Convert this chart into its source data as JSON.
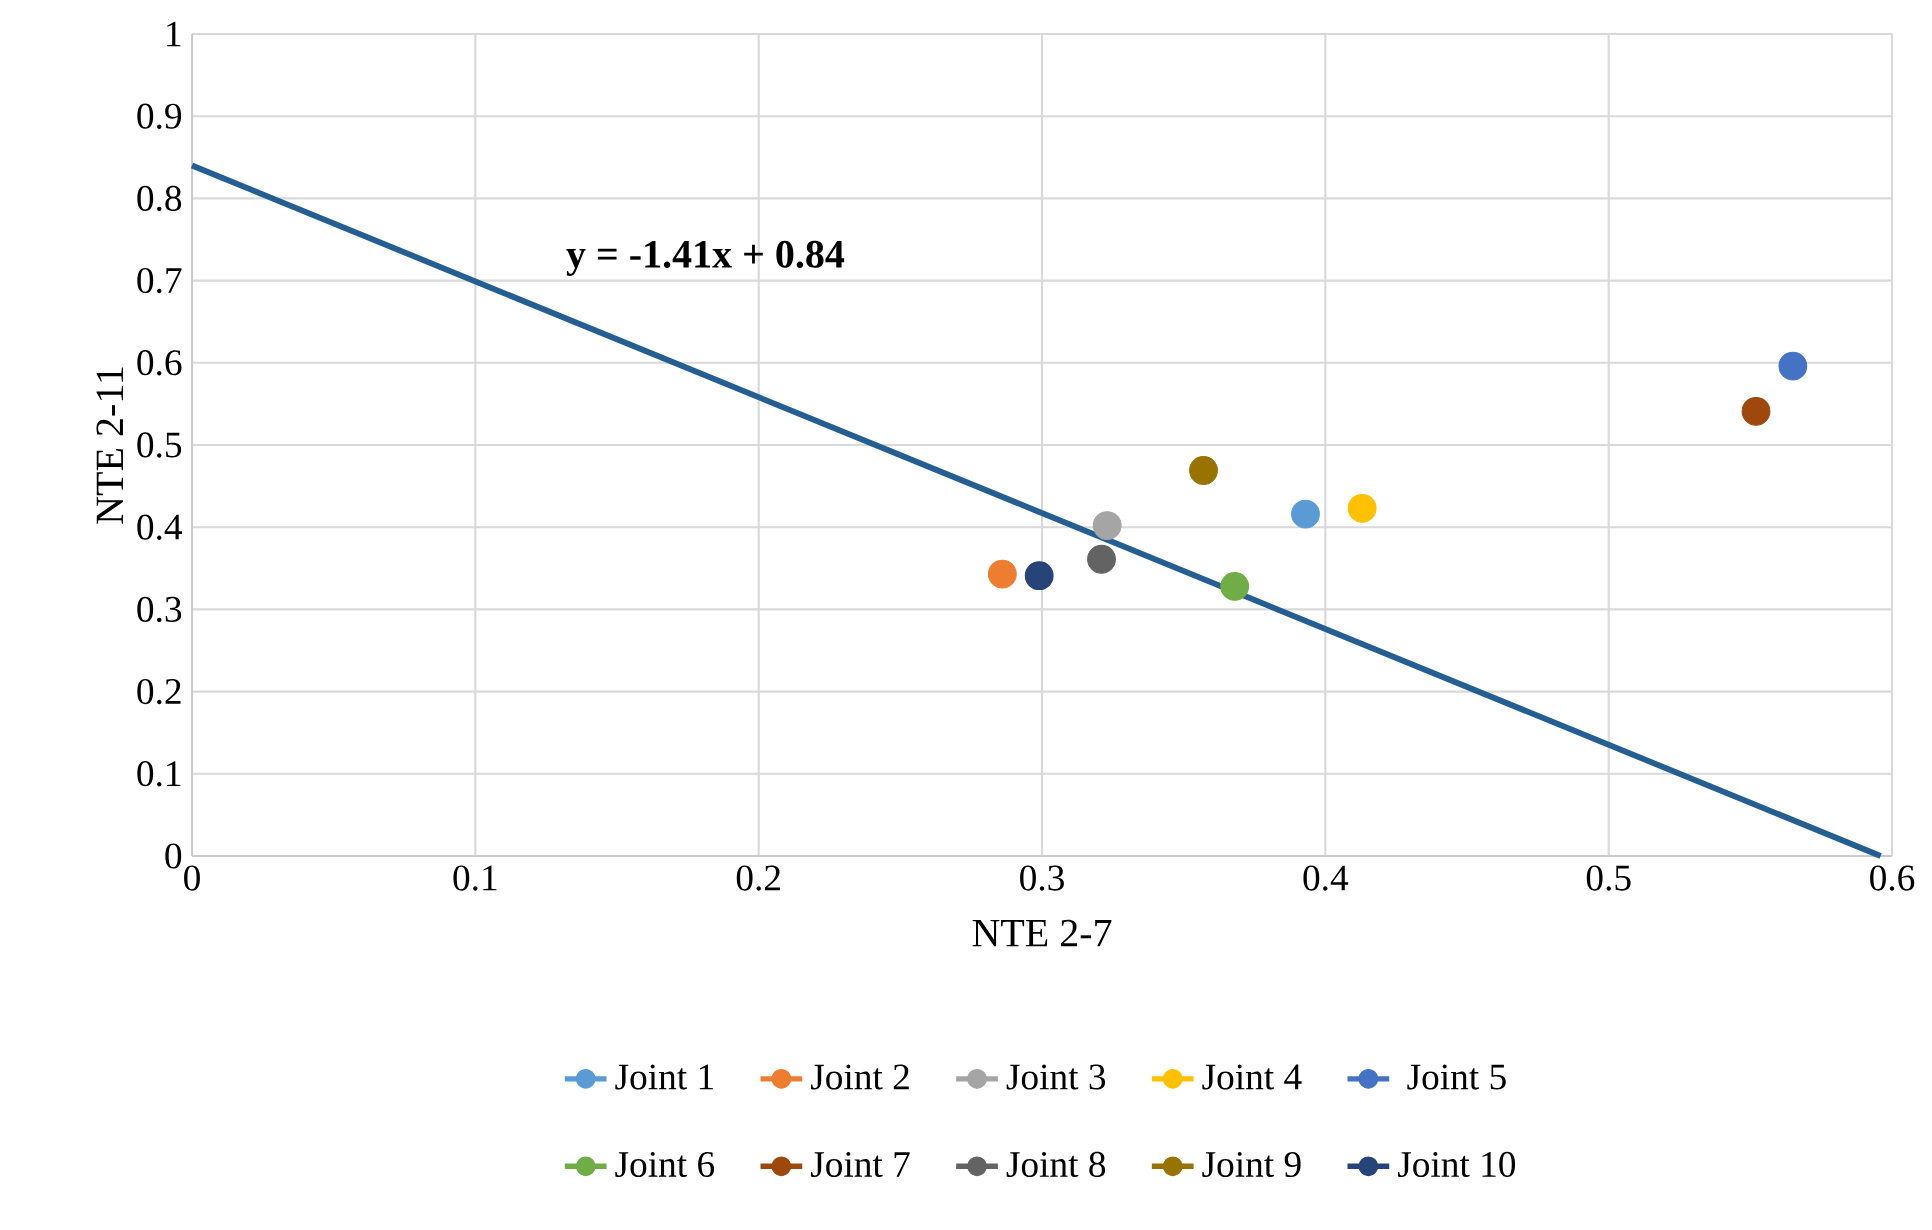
{
  "chart_data": {
    "type": "scatter",
    "xlabel": "NTE 2-7",
    "ylabel": "NTE 2-11",
    "xlim": [
      0,
      0.6
    ],
    "ylim": [
      0,
      1
    ],
    "xticks": [
      0,
      0.1,
      0.2,
      0.3,
      0.4,
      0.5,
      0.6
    ],
    "yticks": [
      0,
      0.1,
      0.2,
      0.3,
      0.4,
      0.5,
      0.6,
      0.7,
      0.8,
      0.9,
      1
    ],
    "grid": true,
    "legend": "bottom",
    "marker": "circle",
    "series": [
      {
        "name": "Joint 1",
        "color": "#5b9bd5",
        "x": [
          0.393
        ],
        "values": [
          0.416
        ]
      },
      {
        "name": "Joint 2",
        "color": "#ed7d31",
        "x": [
          0.286
        ],
        "values": [
          0.343
        ]
      },
      {
        "name": "Joint 3",
        "color": "#a5a5a5",
        "x": [
          0.323
        ],
        "values": [
          0.402
        ]
      },
      {
        "name": "Joint 4",
        "color": "#ffc000",
        "x": [
          0.413
        ],
        "values": [
          0.423
        ]
      },
      {
        "name": "Joint 5",
        "color": "#4472c4",
        "x": [
          0.565
        ],
        "values": [
          0.596
        ]
      },
      {
        "name": "Joint 6",
        "color": "#70ad47",
        "x": [
          0.368
        ],
        "values": [
          0.328
        ]
      },
      {
        "name": "Joint 7",
        "color": "#9e480e",
        "x": [
          0.552
        ],
        "values": [
          0.541
        ]
      },
      {
        "name": "Joint 8",
        "color": "#636363",
        "x": [
          0.321
        ],
        "values": [
          0.361
        ]
      },
      {
        "name": "Joint 9",
        "color": "#997300",
        "x": [
          0.357
        ],
        "values": [
          0.469
        ]
      },
      {
        "name": "Joint 10",
        "color": "#264478",
        "x": [
          0.299
        ],
        "values": [
          0.341
        ]
      },
      {
        "type": "line",
        "color": "#255e91",
        "line_style": "solid",
        "marker": "none",
        "x": [
          0,
          0.596
        ],
        "values": [
          0.84,
          0
        ]
      }
    ],
    "annotations": [
      "y = -1.41x + 0.84"
    ]
  }
}
